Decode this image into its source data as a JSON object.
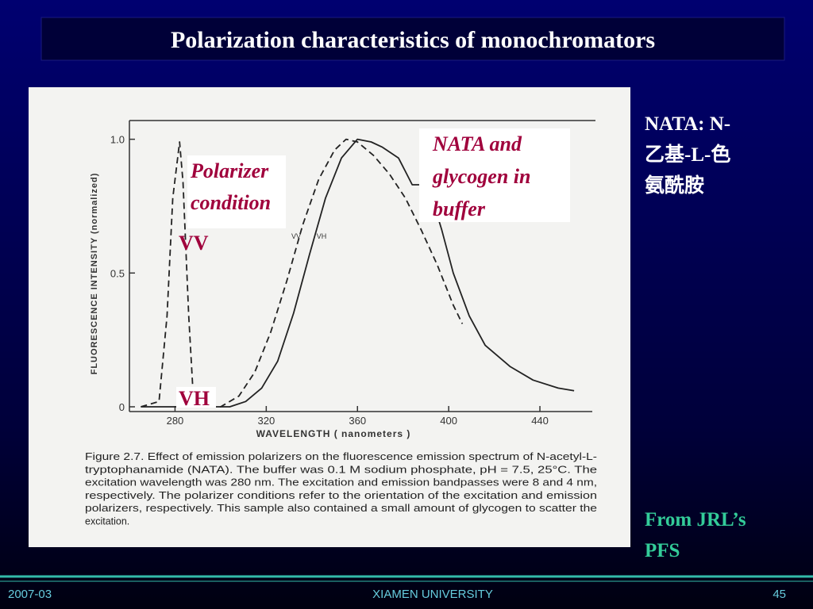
{
  "slide": {
    "title": "Polarization characteristics of monochromators",
    "side_note": [
      "NATA: N-",
      "乙基-L-色",
      "氨酰胺"
    ],
    "source": [
      "From JRL’s",
      "PFS"
    ],
    "footer": {
      "date": "2007-03",
      "org": "XIAMEN UNIVERSITY",
      "page": "45"
    }
  },
  "chart_data": {
    "type": "line",
    "x_label": "WAVELENGTH ( nanometers )",
    "y_label": "FLUORESCENCE INTENSITY (normalized)",
    "caption": [
      "Figure 2.7.  Effect of emission polarizers on the fluorescence emission spectrum of N-acetyl-L-",
      "tryptophanamide (NATA). The buffer was 0.1 M sodium phosphate, pH = 7.5, 25°C. The",
      "excitation wavelength was 280 nm. The excitation and emission bandpasses were 8 and 4 nm,",
      "respectively. The polarizer conditions refer to the orientation of the excitation and emission",
      "polarizers, respectively. This sample also contained a small amount of glycogen to scatter the",
      "excitation."
    ],
    "annotations": {
      "polarizer": [
        "Polarizer",
        "condition"
      ],
      "vv": "VV",
      "vh": "VH",
      "sample": [
        "NATA and",
        "glycogen in",
        "buffer"
      ]
    },
    "xlim": [
      260,
      456
    ],
    "ylim": [
      0,
      1.07
    ],
    "xticks": [
      280,
      320,
      360,
      400,
      440
    ],
    "yticks": [
      0,
      0.5,
      {
        "value": 1,
        "label": "1.0"
      }
    ],
    "series": [
      {
        "name": "VV",
        "color": "#222222",
        "style": "dashed",
        "x": [
          265,
          273,
          276.5,
          279,
          282,
          283.5,
          286,
          288,
          290.5,
          300,
          308,
          315,
          322,
          329,
          336,
          343,
          350,
          355,
          360,
          367,
          374,
          381,
          388,
          395,
          402,
          406
        ],
        "values": [
          0,
          0.02,
          0.34,
          0.78,
          0.99,
          0.84,
          0.34,
          0.04,
          0,
          0,
          0.04,
          0.13,
          0.28,
          0.47,
          0.68,
          0.85,
          0.96,
          1.0,
          0.99,
          0.94,
          0.87,
          0.78,
          0.66,
          0.53,
          0.38,
          0.31
        ]
      },
      {
        "name": "VH",
        "color": "#222222",
        "style": "solid",
        "x": [
          265,
          290,
          304,
          311,
          318,
          325,
          332,
          339,
          346,
          353,
          360,
          366,
          371,
          378,
          381,
          384,
          388,
          392,
          397,
          402,
          409,
          416,
          427,
          437,
          448,
          455
        ],
        "values": [
          0,
          0,
          0,
          0.02,
          0.07,
          0.17,
          0.35,
          0.57,
          0.78,
          0.93,
          1.0,
          0.99,
          0.97,
          0.93,
          0.88,
          0.83,
          0.83,
          0.8,
          0.66,
          0.5,
          0.34,
          0.23,
          0.15,
          0.1,
          0.07,
          0.06
        ]
      }
    ]
  }
}
